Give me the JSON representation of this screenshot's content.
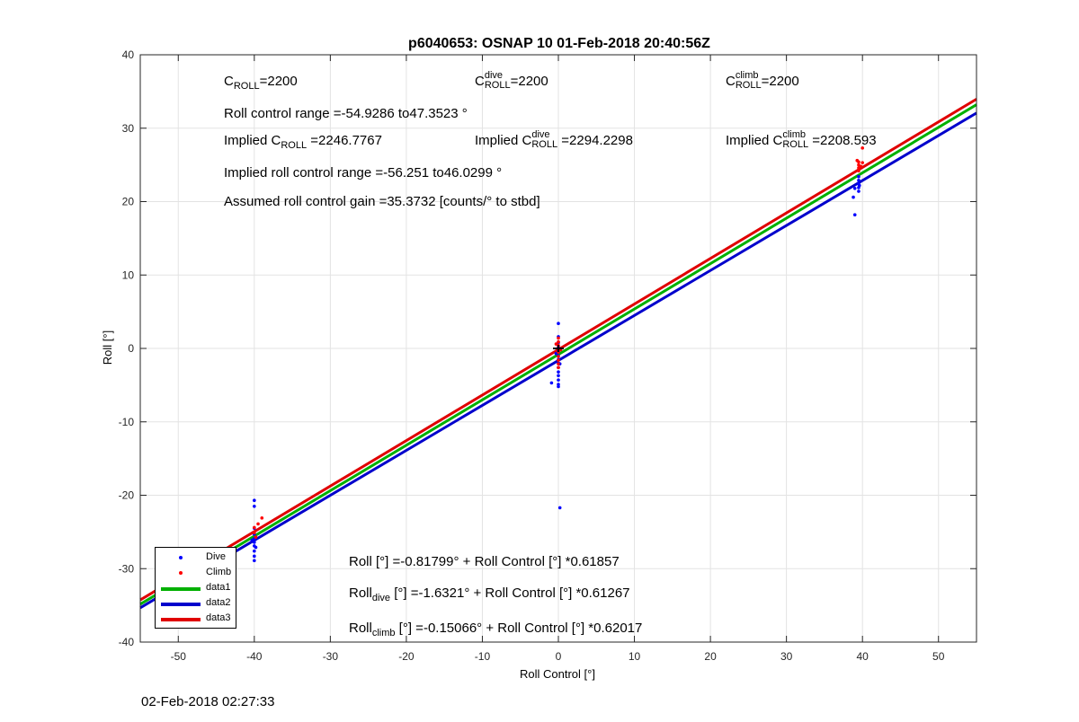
{
  "chart_data": {
    "type": "scatter",
    "title": "p6040653: OSNAP 10 01-Feb-2018 20:40:56Z",
    "xlabel": "Roll Control [°]",
    "ylabel": "Roll [°]",
    "xlim": [
      -55,
      55
    ],
    "ylim": [
      -40,
      40
    ],
    "xticks": [
      -50,
      -40,
      -30,
      -20,
      -10,
      0,
      10,
      20,
      30,
      40,
      50
    ],
    "yticks": [
      -40,
      -30,
      -20,
      -10,
      0,
      10,
      20,
      30,
      40
    ],
    "xtick_labels": [
      "-50",
      "-40",
      "-30",
      "-20",
      "-10",
      "0",
      "10",
      "20",
      "30",
      "40",
      "50"
    ],
    "ytick_labels": [
      "-40",
      "-30",
      "-20",
      "-10",
      "0",
      "10",
      "20",
      "30",
      "40"
    ],
    "grid": true,
    "legend_position": "bottom-left",
    "series": [
      {
        "name": "Dive",
        "kind": "points",
        "color": "#0000ff",
        "points": [
          [
            -40,
            -20.7
          ],
          [
            -40,
            -21.5
          ],
          [
            -40,
            -24.5
          ],
          [
            -40,
            -25.3
          ],
          [
            -40,
            -25.9
          ],
          [
            -40,
            -26.4
          ],
          [
            -40,
            -26.9
          ],
          [
            -40,
            -27.6
          ],
          [
            -40,
            -28.3
          ],
          [
            -40,
            -28.9
          ],
          [
            -40.3,
            -26.1
          ],
          [
            -39.8,
            -27.1
          ],
          [
            0,
            3.4
          ],
          [
            0,
            1.6
          ],
          [
            0,
            0.8
          ],
          [
            0,
            0.2
          ],
          [
            0,
            -0.4
          ],
          [
            0,
            -1.0
          ],
          [
            0,
            -1.5
          ],
          [
            0,
            -2.0
          ],
          [
            0,
            -2.6
          ],
          [
            0,
            -3.2
          ],
          [
            0,
            -3.7
          ],
          [
            0,
            -4.3
          ],
          [
            0,
            -4.9
          ],
          [
            0,
            -5.2
          ],
          [
            -0.3,
            -0.7
          ],
          [
            0.2,
            -2.1
          ],
          [
            -0.9,
            -4.7
          ],
          [
            0.2,
            -21.7
          ],
          [
            39,
            18.2
          ],
          [
            38.8,
            20.6
          ],
          [
            39,
            21.8
          ],
          [
            39.5,
            21.4
          ],
          [
            39.5,
            21.9
          ],
          [
            39.5,
            22.4
          ],
          [
            39.5,
            22.9
          ],
          [
            39.5,
            23.4
          ],
          [
            39.6,
            22.2
          ]
        ]
      },
      {
        "name": "Climb",
        "kind": "points",
        "color": "#ff0000",
        "points": [
          [
            -39,
            -23.1
          ],
          [
            -39.5,
            -23.9
          ],
          [
            -40,
            -24.4
          ],
          [
            -40,
            -25.1
          ],
          [
            -39.8,
            -25.7
          ],
          [
            0,
            1.4
          ],
          [
            0,
            0.9
          ],
          [
            0,
            0.4
          ],
          [
            0,
            0.0
          ],
          [
            0,
            -0.5
          ],
          [
            0,
            -1.1
          ],
          [
            0,
            -1.6
          ],
          [
            0,
            -2.1
          ],
          [
            0,
            -2.6
          ],
          [
            0.3,
            -0.2
          ],
          [
            -0.3,
            0.6
          ],
          [
            39.5,
            24.2
          ],
          [
            39.5,
            24.6
          ],
          [
            39.5,
            25.0
          ],
          [
            39.5,
            25.4
          ],
          [
            39.8,
            24.8
          ],
          [
            40,
            25.3
          ],
          [
            39.3,
            25.6
          ],
          [
            40,
            27.3
          ]
        ]
      },
      {
        "name": "data1",
        "kind": "line",
        "color": "#00b000",
        "intercept": -0.81799,
        "slope": 0.61857
      },
      {
        "name": "data2",
        "kind": "line",
        "color": "#0000cc",
        "intercept": -1.6321,
        "slope": 0.61267
      },
      {
        "name": "data3",
        "kind": "line",
        "color": "#e00000",
        "intercept": -0.15066,
        "slope": 0.62017
      }
    ],
    "origin_marker": [
      0,
      0
    ]
  },
  "annotations": {
    "c_roll": {
      "prefix": "C",
      "sub": "ROLL",
      "value": "=2200"
    },
    "c_roll_dive": {
      "prefix": "C",
      "sup": "dive",
      "sub": "ROLL",
      "value": "=2200"
    },
    "c_roll_climb": {
      "prefix": "C",
      "sup": "climb",
      "sub": "ROLL",
      "value": "=2200"
    },
    "roll_range": "Roll control range =-54.9286 to47.3523 °",
    "implied_c_roll": {
      "prefix": "Implied C",
      "sub": "ROLL",
      "value": " =2246.7767"
    },
    "implied_c_roll_dive": {
      "prefix": "Implied C",
      "sup": "dive",
      "sub": "ROLL",
      "value": " =2294.2298"
    },
    "implied_c_roll_climb": {
      "prefix": "Implied C",
      "sup": "climb",
      "sub": "ROLL",
      "value": " =2208.593"
    },
    "implied_range": "Implied roll control range =-56.251 to46.0299 °",
    "gain": "Assumed roll control gain =35.3732 [counts/° to stbd]",
    "fit_all": "Roll [°] =-0.81799° + Roll Control [°] *0.61857",
    "fit_dive": {
      "prefix": "Roll",
      "sub": "dive",
      "rest": " [°] =-1.6321° + Roll Control [°] *0.61267"
    },
    "fit_climb": {
      "prefix": "Roll",
      "sub": "climb",
      "rest": " [°] =-0.15066° + Roll Control [°] *0.62017"
    }
  },
  "legend": {
    "items": [
      {
        "label": "Dive",
        "kind": "point",
        "color": "#0000ff"
      },
      {
        "label": "Climb",
        "kind": "point",
        "color": "#ff0000"
      },
      {
        "label": "data1",
        "kind": "line",
        "color": "#00b000"
      },
      {
        "label": "data2",
        "kind": "line",
        "color": "#0000cc"
      },
      {
        "label": "data3",
        "kind": "line",
        "color": "#e00000"
      }
    ]
  },
  "timestamp": "02-Feb-2018 02:27:33"
}
